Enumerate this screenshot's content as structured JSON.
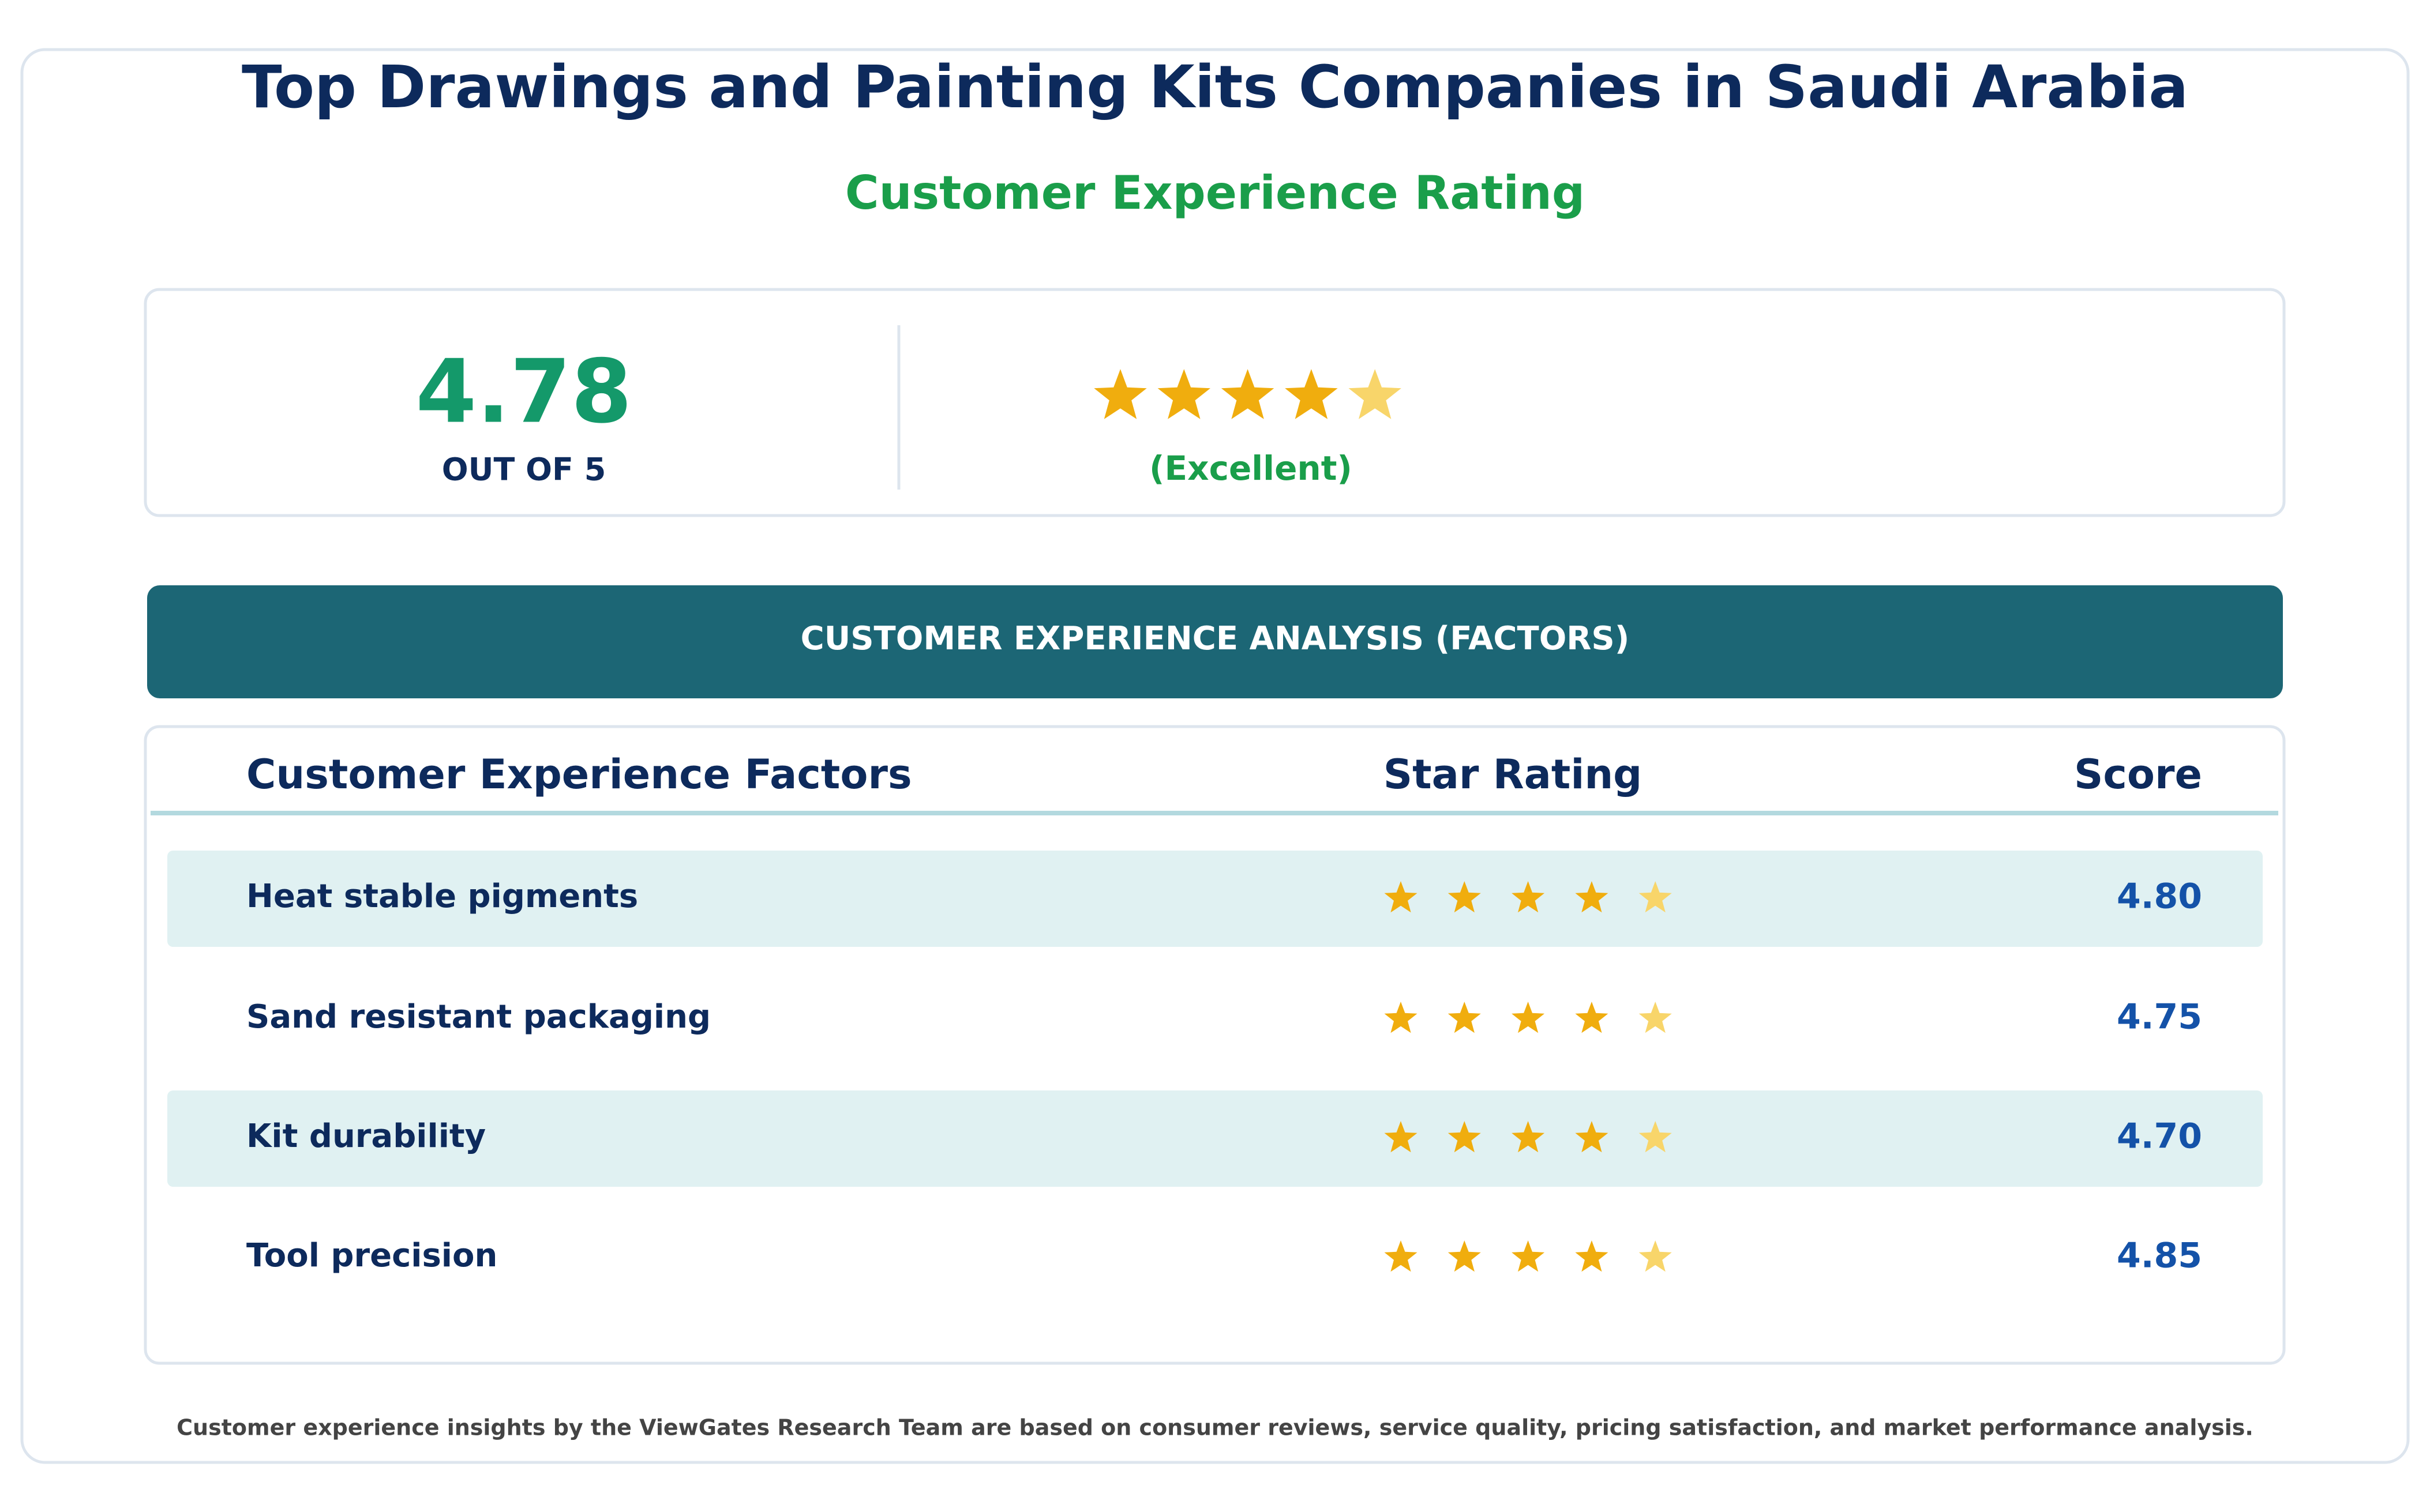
{
  "header": {
    "title": "Top Drawings and Painting Kits Companies in Saudi Arabia",
    "subtitle": "Customer Experience Rating"
  },
  "overall": {
    "score": 4.78,
    "label": "OUT OF 5",
    "verdict": "(Excellent)"
  },
  "analysis": {
    "banner": "CUSTOMER EXPERIENCE ANALYSIS (FACTORS)",
    "columns": [
      "Customer Experience Factors",
      "Star Rating",
      "Score"
    ],
    "rows": [
      {
        "factor": "Heat stable pigments",
        "score": {
          "value": 4.8,
          "label": "4.80"
        }
      },
      {
        "factor": "Sand resistant packaging",
        "score": {
          "value": 4.75,
          "label": "4.75"
        }
      },
      {
        "factor": "Kit durability",
        "score": {
          "value": 4.7,
          "label": "4.70"
        }
      },
      {
        "factor": "Tool precision",
        "score": {
          "value": 4.85,
          "label": "4.85"
        }
      }
    ]
  },
  "footer": "Customer experience insights by the ViewGates Research Team are based on consumer reviews, service quality, pricing satisfaction, and market performance analysis."
}
